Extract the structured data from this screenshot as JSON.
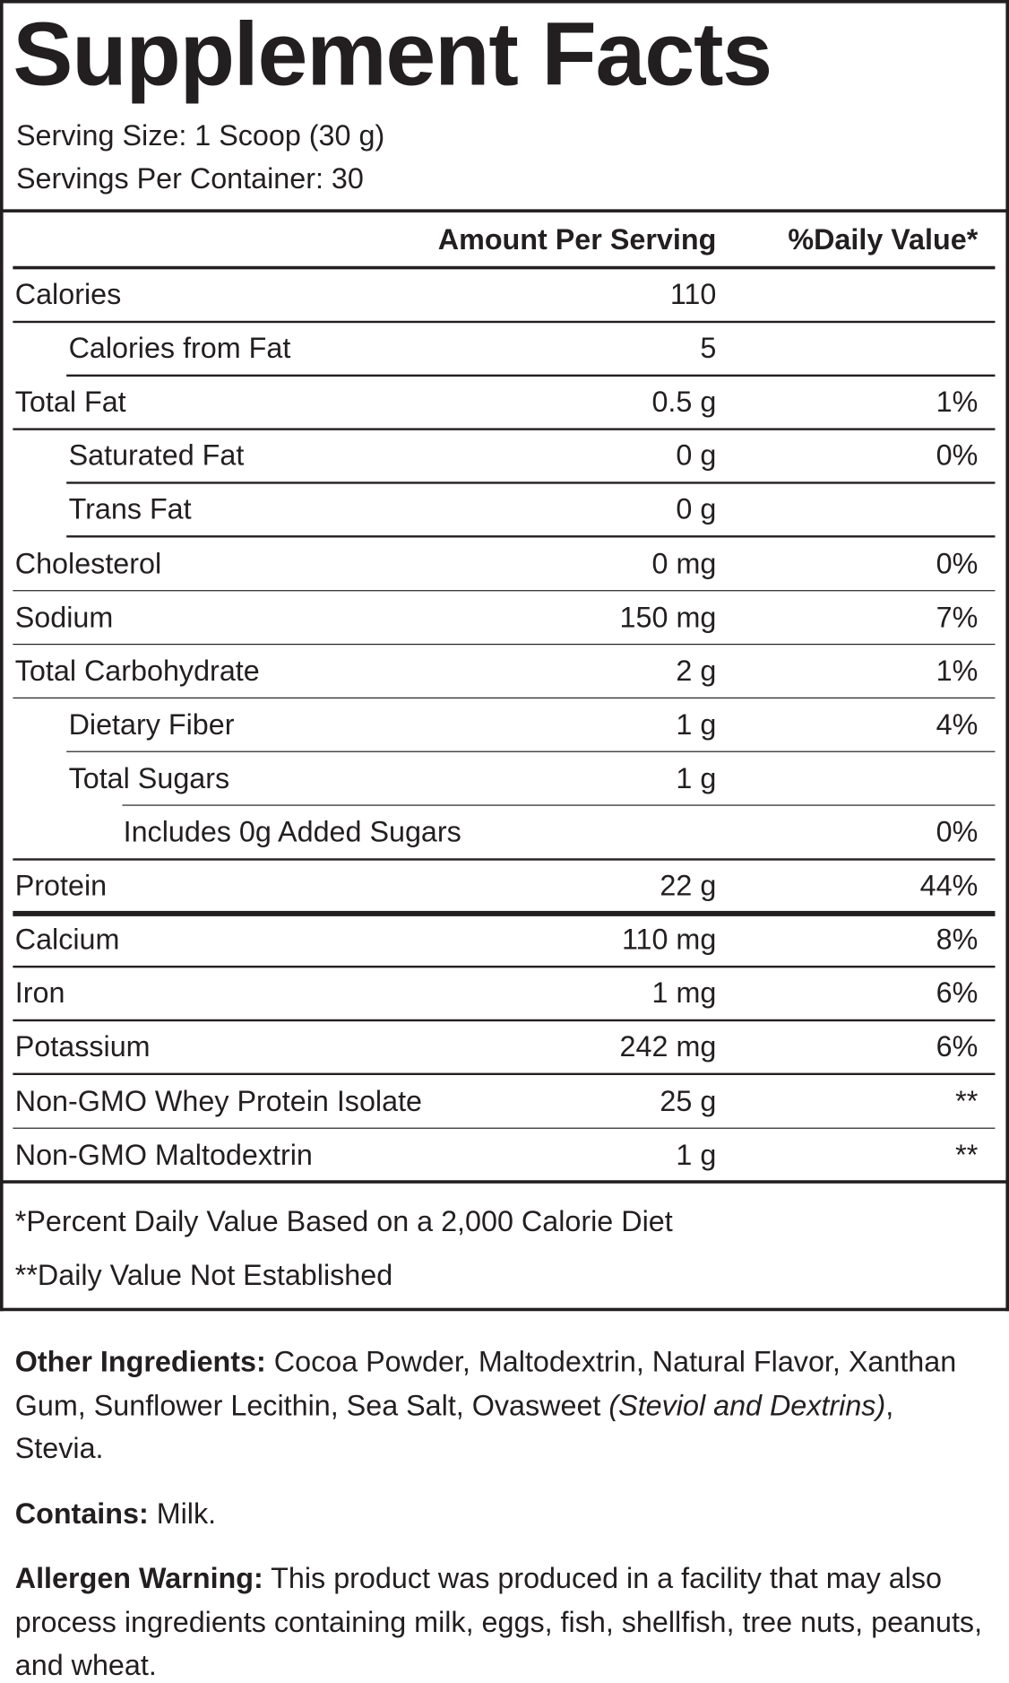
{
  "title": "Supplement Facts",
  "serving_size": "Serving Size: 1 Scoop (30 g)",
  "servings_per_container": "Servings Per Container: 30",
  "header": {
    "amount": "Amount Per Serving",
    "dv": "%Daily Value*"
  },
  "rows": [
    {
      "name": "Calories",
      "amount": "110",
      "dv": null
    },
    {
      "name": "Calories from Fat",
      "amount": "5",
      "dv": null
    },
    {
      "name": "Total Fat",
      "amount": "0.5 g",
      "dv": "1%"
    },
    {
      "name": "Saturated Fat",
      "amount": "0 g",
      "dv": "0%"
    },
    {
      "name": "Trans Fat",
      "amount": "0 g",
      "dv": null
    },
    {
      "name": "Cholesterol",
      "amount": "0 mg",
      "dv": "0%"
    },
    {
      "name": "Sodium",
      "amount": "150 mg",
      "dv": "7%"
    },
    {
      "name": "Total Carbohydrate",
      "amount": "2 g",
      "dv": "1%"
    },
    {
      "name": "Dietary Fiber",
      "amount": "1 g",
      "dv": "4%"
    },
    {
      "name": "Total Sugars",
      "amount": "1 g",
      "dv": null
    },
    {
      "name": "Includes 0g Added Sugars",
      "amount": null,
      "dv": "0%"
    },
    {
      "name": "Protein",
      "amount": "22 g",
      "dv": "44%"
    },
    {
      "name": "Calcium",
      "amount": "110 mg",
      "dv": "8%"
    },
    {
      "name": "Iron",
      "amount": "1 mg",
      "dv": "6%"
    },
    {
      "name": "Potassium",
      "amount": "242 mg",
      "dv": "6%"
    },
    {
      "name": "Non-GMO Whey Protein Isolate",
      "amount": "25 g",
      "dv": "**"
    },
    {
      "name": "Non-GMO Maltodextrin",
      "amount": "1 g",
      "dv": "**"
    }
  ],
  "footnotes": [
    "*Percent Daily Value Based on a 2,000 Calorie Diet",
    "**Daily Value Not Established"
  ],
  "paragraphs": [
    {
      "label": "Other Ingredients:",
      "parts": [
        {
          "text": " Cocoa Powder, Maltodextrin, Natural Flavor, Xanthan Gum, Sunflower Lecithin, Sea Salt, Ovasweet "
        },
        {
          "text": "(Steviol and Dextrins)",
          "italic": true
        },
        {
          "text": ", Stevia."
        }
      ]
    },
    {
      "label": "Contains:",
      "parts": [
        {
          "text": " Milk."
        }
      ]
    },
    {
      "label": "Allergen Warning:",
      "parts": [
        {
          "text": " This product was produced in a facility that may also process ingredients containing milk, eggs, fish, shellfish, tree nuts, peanuts, and wheat."
        }
      ]
    }
  ]
}
